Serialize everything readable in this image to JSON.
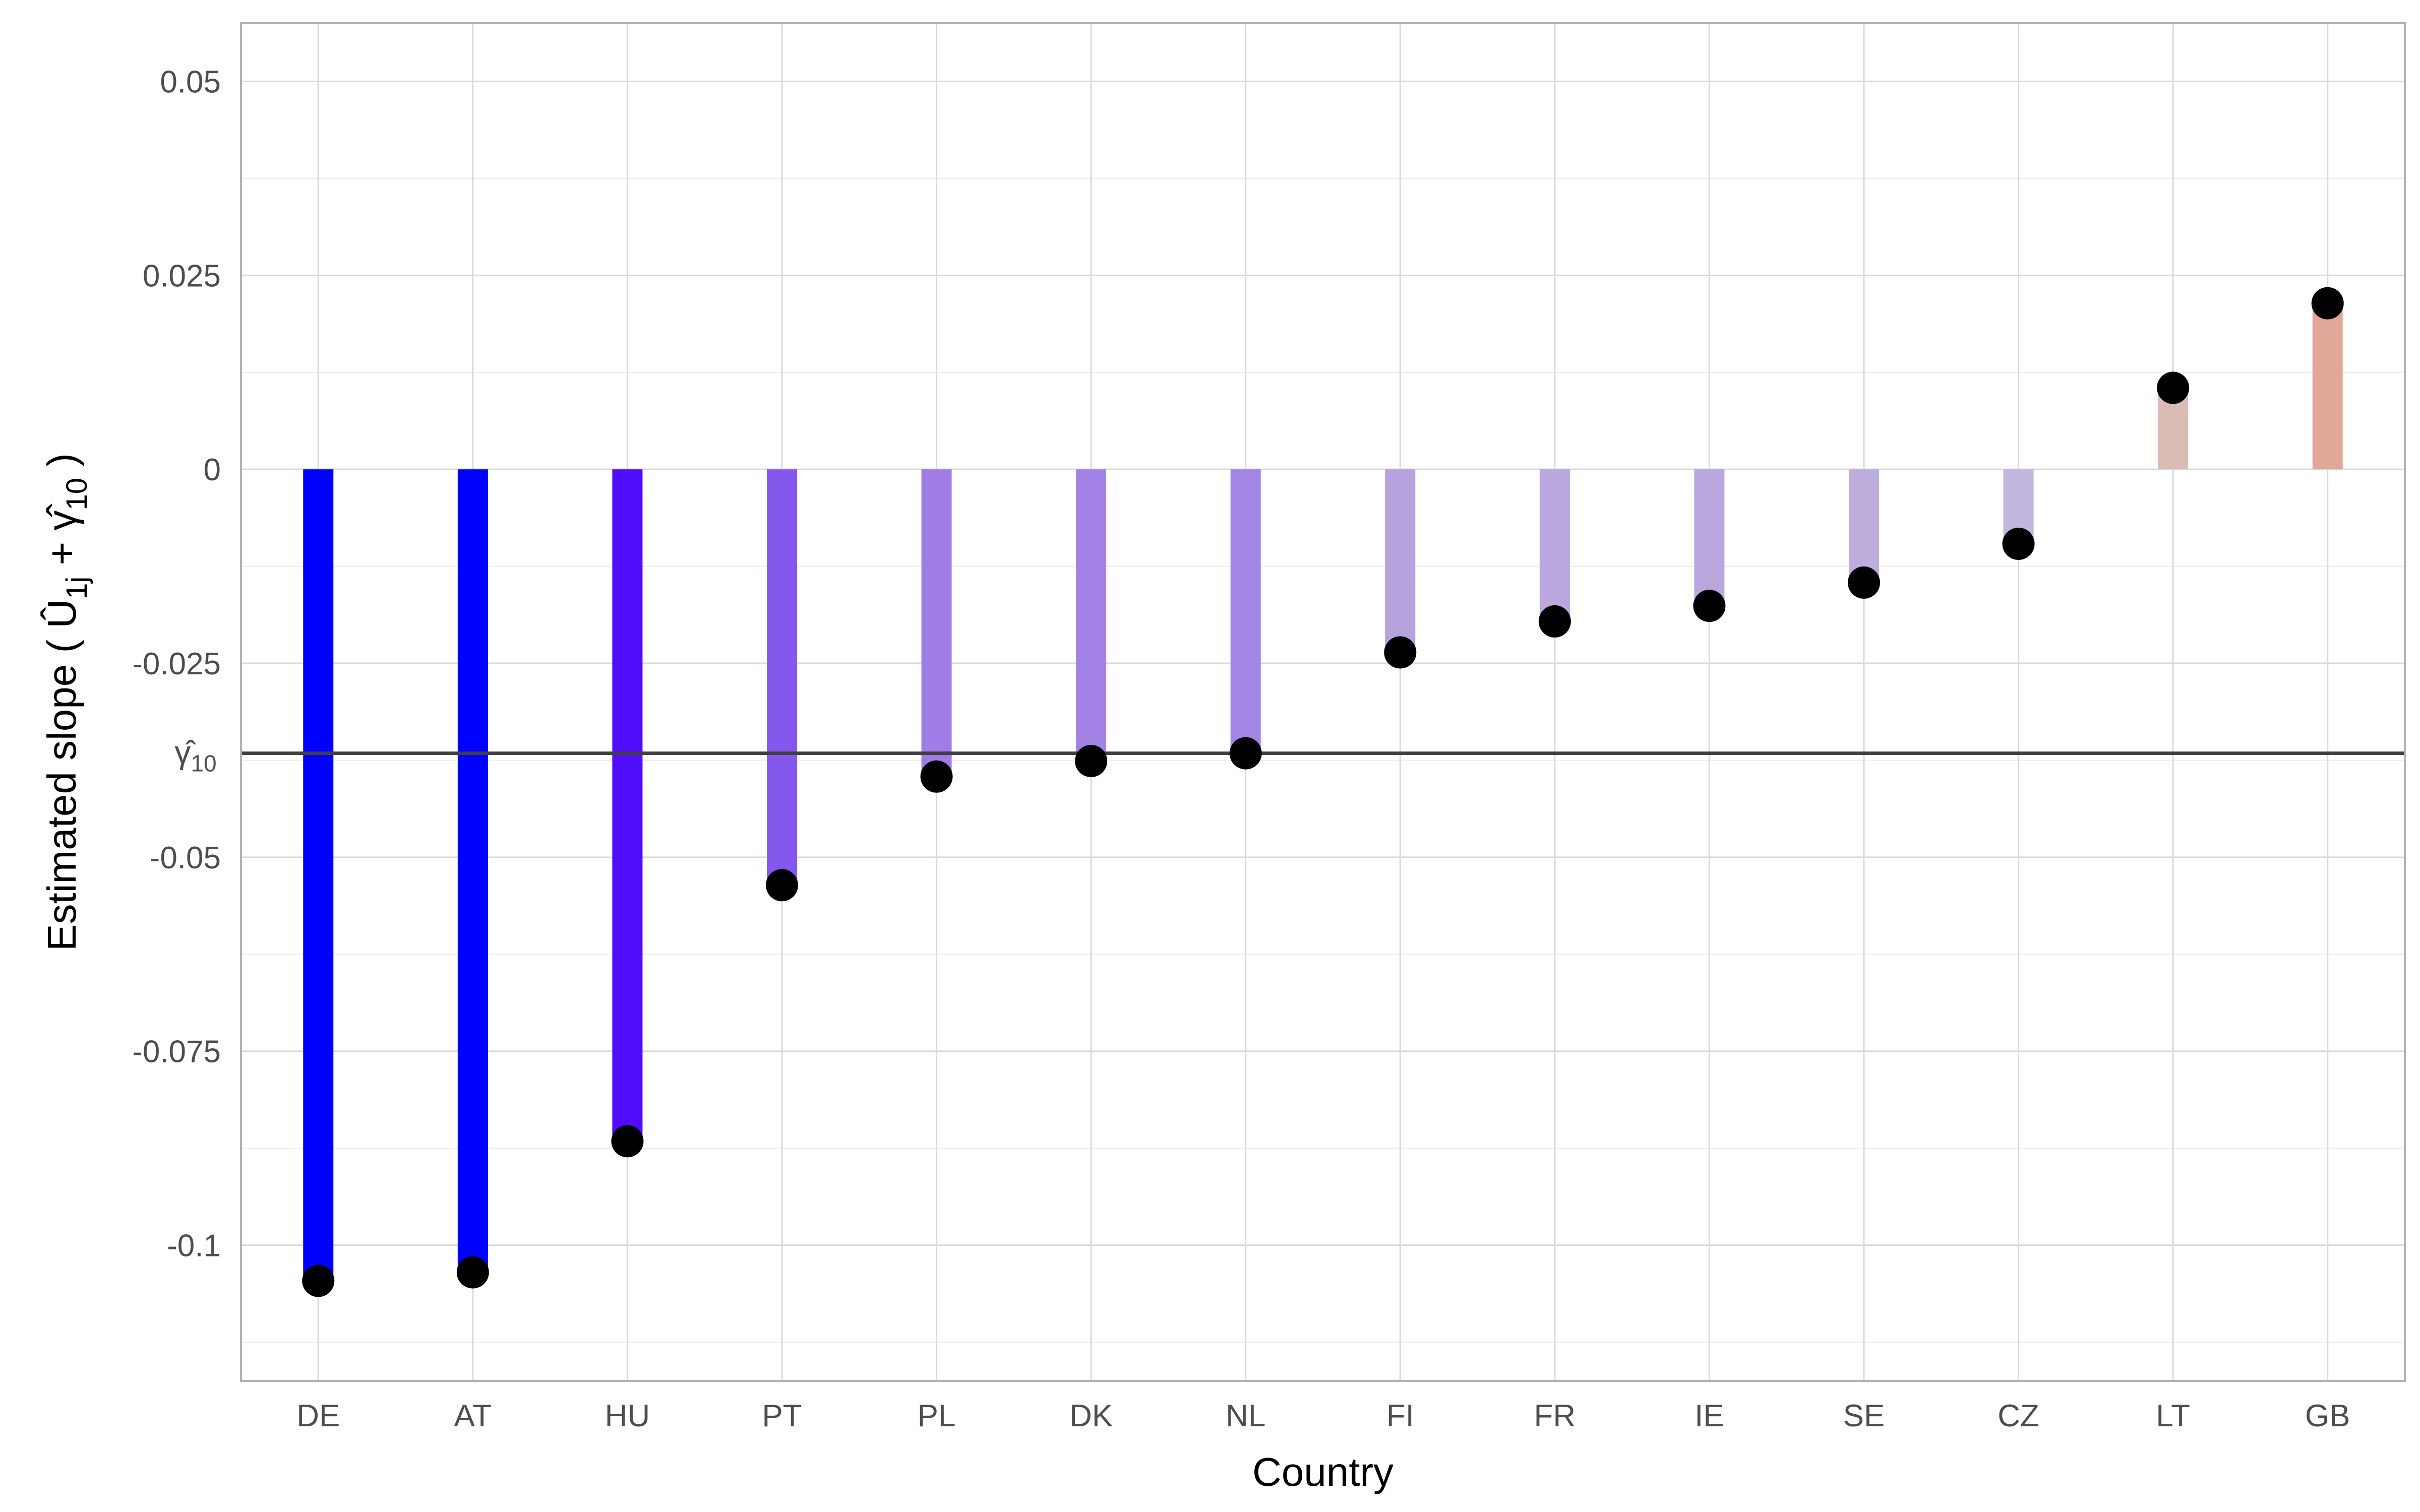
{
  "chart_data": {
    "type": "bar",
    "categories": [
      "DE",
      "AT",
      "HU",
      "PT",
      "PL",
      "DK",
      "NL",
      "FI",
      "FR",
      "IE",
      "SE",
      "CZ",
      "LT",
      "GB"
    ],
    "values": [
      -0.1046,
      -0.1035,
      -0.0866,
      -0.0536,
      -0.0396,
      -0.0376,
      -0.0366,
      -0.0236,
      -0.0196,
      -0.0176,
      -0.0146,
      -0.0096,
      0.0105,
      0.0214
    ],
    "bar_colors": [
      "#0000ff",
      "#0000ff",
      "#4f0dfa",
      "#8558ed",
      "#9f7ce6",
      "#a283e5",
      "#a385e5",
      "#b6a2df",
      "#b9a7de",
      "#b9a7de",
      "#bcaddd",
      "#c2b6dc",
      "#dbbcb4",
      "#e1a89a"
    ],
    "point_color": "#000000",
    "reference_line": {
      "value": -0.0366,
      "label": "γ̂",
      "label_subscript": "10",
      "color": "#404040"
    },
    "xlabel": "Country",
    "ylabel": {
      "text": "Estimated slope ( ",
      "u_symbol": "Û",
      "u_subscript": "1j",
      "plus": " + ",
      "gamma_symbol": "γ̂",
      "gamma_subscript": "10",
      "close": " )"
    },
    "ylim": [
      -0.1175,
      0.0575
    ],
    "yticks": [
      0.05,
      0.025,
      0,
      -0.025,
      -0.05,
      -0.075,
      -0.1
    ],
    "ytick_labels": [
      "0.05",
      "0.025",
      "0",
      "-0.025",
      "-0.05",
      "-0.075",
      "-0.1"
    ],
    "grid": true,
    "theme": "light",
    "legend": "none"
  }
}
